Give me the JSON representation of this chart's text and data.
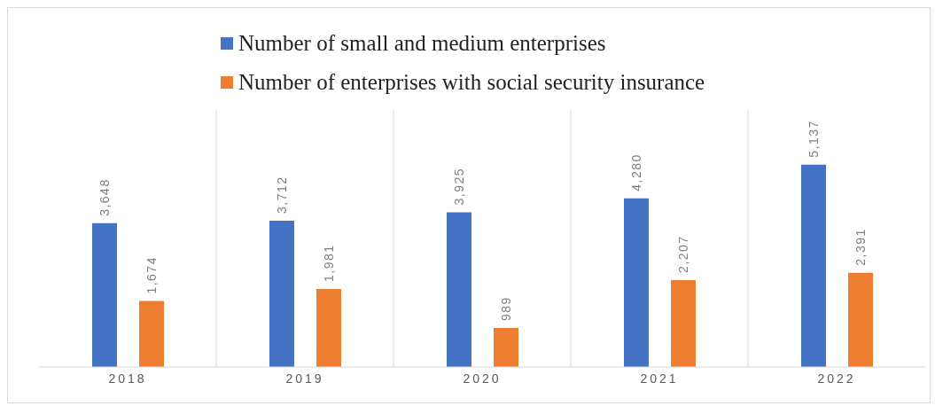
{
  "chart_data": {
    "type": "bar",
    "categories": [
      "2018",
      "2019",
      "2020",
      "2021",
      "2022"
    ],
    "series": [
      {
        "name": "Number of small and medium enterprises",
        "color": "#4472c4",
        "values": [
          3648,
          3712,
          3925,
          4280,
          5137
        ],
        "value_labels": [
          "3,648",
          "3,712",
          "3,925",
          "4,280",
          "5,137"
        ]
      },
      {
        "name": "Number of enterprises with social security insurance",
        "color": "#ed7d31",
        "values": [
          1674,
          1981,
          989,
          2207,
          2391
        ],
        "value_labels": [
          "1,674",
          "1,981",
          "989",
          "2,207",
          "2,391"
        ]
      }
    ],
    "grid": "x",
    "legend": "top"
  }
}
